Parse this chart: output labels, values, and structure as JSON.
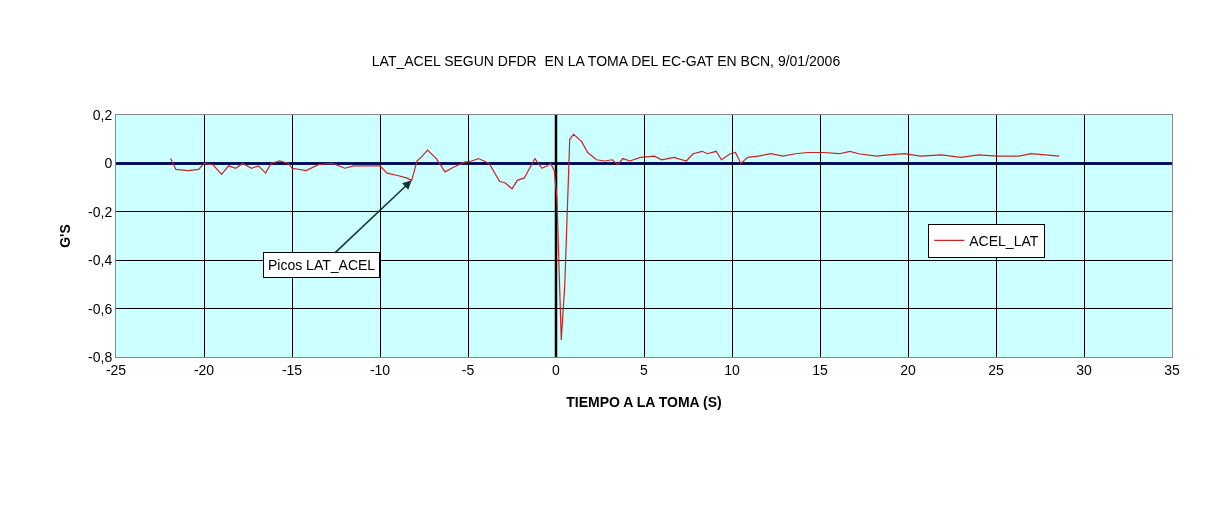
{
  "chart_data": {
    "type": "line",
    "title": "LAT_ACEL SEGUN DFDR  EN LA TOMA DEL EC-GAT EN BCN, 9/01/2006",
    "xlabel": "TIEMPO A LA TOMA (S)",
    "ylabel": "G'S",
    "x": [
      -21.9,
      -21.6,
      -20.9,
      -20.3,
      -20.0,
      -19.5,
      -19.0,
      -18.6,
      -18.2,
      -17.8,
      -17.3,
      -16.9,
      -16.5,
      -16.2,
      -15.7,
      -15.2,
      -15.0,
      -14.2,
      -13.5,
      -12.7,
      -12.0,
      -11.5,
      -10.8,
      -10.0,
      -9.6,
      -9.0,
      -8.5,
      -8.2,
      -7.9,
      -7.6,
      -7.3,
      -6.8,
      -6.3,
      -5.8,
      -5.2,
      -4.8,
      -4.4,
      -3.8,
      -3.2,
      -2.9,
      -2.5,
      -2.2,
      -1.8,
      -1.5,
      -1.2,
      -0.8,
      -0.5,
      -0.3,
      -0.1,
      0.05,
      0.3,
      0.5,
      0.78,
      1.0,
      1.46,
      1.8,
      2.3,
      2.77,
      3.2,
      3.5,
      3.8,
      4.2,
      4.8,
      5.6,
      6.0,
      6.7,
      7.4,
      7.8,
      8.3,
      8.6,
      9.1,
      9.4,
      9.9,
      10.2,
      10.5,
      10.9,
      11.5,
      12.2,
      12.9,
      13.6,
      14.3,
      15.2,
      16.1,
      16.7,
      17.2,
      18.2,
      18.9,
      19.8,
      20.7,
      21.9,
      23.0,
      24.0,
      25.1,
      26.3,
      27.0,
      28.6
    ],
    "series": [
      {
        "name": "ACEL_LAT",
        "color": "#cc2222",
        "values": [
          0.02,
          -0.025,
          -0.03,
          -0.025,
          0.0,
          -0.005,
          -0.045,
          -0.01,
          -0.02,
          0.0,
          -0.02,
          -0.01,
          -0.04,
          0.0,
          0.01,
          0.0,
          -0.02,
          -0.03,
          -0.005,
          0.0,
          -0.02,
          -0.01,
          -0.01,
          -0.01,
          -0.04,
          -0.05,
          -0.06,
          -0.07,
          0.01,
          0.03,
          0.055,
          0.02,
          -0.035,
          -0.015,
          0.005,
          0.01,
          0.02,
          0.0,
          -0.075,
          -0.08,
          -0.105,
          -0.07,
          -0.06,
          -0.02,
          0.02,
          -0.02,
          -0.01,
          0.0,
          -0.03,
          -0.14,
          -0.73,
          -0.5,
          0.1,
          0.12,
          0.09,
          0.045,
          0.015,
          0.01,
          0.015,
          -0.005,
          0.02,
          0.01,
          0.025,
          0.03,
          0.015,
          0.025,
          0.01,
          0.04,
          0.05,
          0.04,
          0.05,
          0.015,
          0.04,
          0.045,
          0.0,
          0.025,
          0.03,
          0.04,
          0.03,
          0.04,
          0.045,
          0.045,
          0.04,
          0.05,
          0.04,
          0.03,
          0.035,
          0.04,
          0.03,
          0.035,
          0.025,
          0.035,
          0.03,
          0.03,
          0.04,
          0.03
        ]
      }
    ],
    "xlim": [
      -25,
      35
    ],
    "xticks": [
      -25,
      -20,
      -15,
      -10,
      -5,
      0,
      5,
      10,
      15,
      20,
      25,
      30,
      35
    ],
    "ylim": [
      -0.8,
      0.2
    ],
    "yticks": [
      {
        "value": -0.8,
        "label": "-0,8"
      },
      {
        "value": -0.6,
        "label": "-0,6"
      },
      {
        "value": -0.4,
        "label": "-0,4"
      },
      {
        "value": -0.2,
        "label": "-0,2"
      },
      0,
      {
        "value": 0.2,
        "label": "0,2"
      }
    ],
    "annotations": [
      {
        "text": "Picos LAT_ACEL",
        "x": -8.2,
        "y": -0.07
      }
    ],
    "ref_lines": [
      {
        "axis": "y",
        "value": 0,
        "color": "#0a1a6a"
      },
      {
        "axis": "x",
        "value": 0,
        "color": "#000000"
      }
    ],
    "grid": true,
    "legend": "right",
    "marker": "none",
    "line_style": "solid"
  }
}
